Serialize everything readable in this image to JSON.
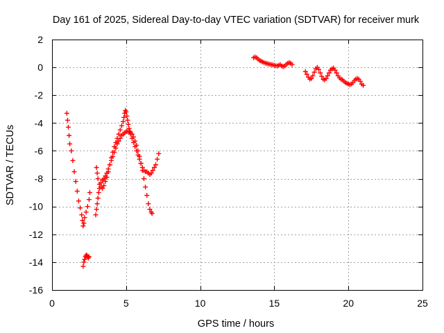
{
  "chart_data": {
    "type": "scatter",
    "title": "Day 161 of 2025, Sidereal Day-to-day VTEC variation (SDTVAR) for receiver murk",
    "xlabel": "GPS time / hours",
    "ylabel": "SDTVAR / TECUs",
    "xlim": [
      0,
      25
    ],
    "ylim": [
      -16,
      2
    ],
    "xticks": [
      0,
      5,
      10,
      15,
      20,
      25
    ],
    "yticks": [
      2,
      0,
      -2,
      -4,
      -6,
      -8,
      -10,
      -12,
      -14,
      -16
    ],
    "grid": true,
    "marker": "+",
    "color": "#ff0000",
    "series": [
      {
        "name": "SDTVAR",
        "segments": [
          [
            [
              1.0,
              -3.3
            ],
            [
              1.05,
              -3.8
            ],
            [
              1.1,
              -4.3
            ],
            [
              1.15,
              -4.9
            ],
            [
              1.2,
              -5.5
            ],
            [
              1.3,
              -6.0
            ],
            [
              1.4,
              -6.7
            ],
            [
              1.5,
              -7.5
            ],
            [
              1.6,
              -8.2
            ],
            [
              1.7,
              -8.9
            ],
            [
              1.8,
              -9.6
            ],
            [
              1.9,
              -10.1
            ],
            [
              2.0,
              -10.6
            ],
            [
              2.05,
              -11.0
            ],
            [
              2.1,
              -11.4
            ],
            [
              2.15,
              -11.2
            ],
            [
              2.2,
              -10.8
            ],
            [
              2.3,
              -10.4
            ],
            [
              2.4,
              -10.0
            ],
            [
              2.5,
              -9.5
            ],
            [
              2.55,
              -9.0
            ]
          ],
          [
            [
              2.1,
              -14.3
            ],
            [
              2.15,
              -14.0
            ],
            [
              2.2,
              -13.8
            ],
            [
              2.25,
              -13.6
            ],
            [
              2.3,
              -13.5
            ],
            [
              2.35,
              -13.5
            ],
            [
              2.4,
              -13.6
            ],
            [
              2.45,
              -13.7
            ],
            [
              2.5,
              -13.6
            ]
          ],
          [
            [
              2.95,
              -10.6
            ],
            [
              3.0,
              -10.2
            ],
            [
              3.05,
              -9.8
            ],
            [
              3.1,
              -9.4
            ],
            [
              3.15,
              -9.0
            ],
            [
              3.2,
              -8.7
            ],
            [
              3.3,
              -8.3
            ],
            [
              3.4,
              -8.1
            ],
            [
              3.5,
              -8.0
            ],
            [
              3.6,
              -7.8
            ],
            [
              3.7,
              -7.6
            ],
            [
              3.8,
              -7.3
            ],
            [
              3.9,
              -7.0
            ],
            [
              4.0,
              -6.7
            ],
            [
              4.1,
              -6.4
            ],
            [
              4.2,
              -6.1
            ],
            [
              4.3,
              -5.8
            ],
            [
              4.4,
              -5.5
            ],
            [
              4.5,
              -5.3
            ],
            [
              4.6,
              -5.1
            ],
            [
              4.7,
              -4.9
            ],
            [
              4.8,
              -4.8
            ],
            [
              4.9,
              -4.7
            ],
            [
              5.0,
              -4.6
            ],
            [
              5.1,
              -4.6
            ],
            [
              5.2,
              -4.6
            ],
            [
              5.3,
              -4.7
            ],
            [
              5.4,
              -4.8
            ],
            [
              5.5,
              -5.0
            ],
            [
              5.6,
              -5.3
            ],
            [
              5.7,
              -5.6
            ],
            [
              5.8,
              -6.0
            ],
            [
              5.9,
              -6.4
            ],
            [
              6.0,
              -6.9
            ],
            [
              6.1,
              -7.4
            ],
            [
              6.2,
              -8.0
            ],
            [
              6.3,
              -8.6
            ],
            [
              6.4,
              -9.2
            ],
            [
              6.5,
              -9.8
            ],
            [
              6.6,
              -10.2
            ],
            [
              6.7,
              -10.4
            ],
            [
              6.75,
              -10.5
            ]
          ],
          [
            [
              3.0,
              -7.2
            ],
            [
              3.05,
              -7.6
            ],
            [
              3.1,
              -8.0
            ],
            [
              3.2,
              -8.4
            ],
            [
              3.3,
              -8.6
            ],
            [
              3.4,
              -8.7
            ],
            [
              3.5,
              -8.5
            ],
            [
              3.6,
              -8.2
            ],
            [
              3.7,
              -7.9
            ],
            [
              3.8,
              -7.5
            ],
            [
              3.9,
              -7.0
            ],
            [
              4.0,
              -6.5
            ],
            [
              4.1,
              -6.1
            ],
            [
              4.2,
              -5.7
            ],
            [
              4.3,
              -5.4
            ],
            [
              4.4,
              -5.1
            ],
            [
              4.5,
              -4.8
            ],
            [
              4.6,
              -4.5
            ],
            [
              4.7,
              -4.2
            ],
            [
              4.8,
              -3.9
            ],
            [
              4.85,
              -3.6
            ],
            [
              4.9,
              -3.3
            ],
            [
              4.95,
              -3.1
            ],
            [
              5.0,
              -3.2
            ],
            [
              5.05,
              -3.5
            ],
            [
              5.1,
              -3.8
            ],
            [
              5.15,
              -4.1
            ],
            [
              5.2,
              -4.4
            ],
            [
              5.25,
              -4.6
            ],
            [
              5.3,
              -4.8
            ],
            [
              5.4,
              -5.1
            ],
            [
              5.5,
              -5.4
            ],
            [
              5.6,
              -5.7
            ],
            [
              5.7,
              -6.0
            ],
            [
              5.8,
              -6.3
            ],
            [
              5.9,
              -6.6
            ],
            [
              6.0,
              -6.9
            ],
            [
              6.1,
              -7.2
            ],
            [
              6.2,
              -7.4
            ],
            [
              6.3,
              -7.5
            ],
            [
              6.4,
              -7.5
            ],
            [
              6.5,
              -7.6
            ],
            [
              6.6,
              -7.7
            ],
            [
              6.7,
              -7.6
            ],
            [
              6.8,
              -7.4
            ],
            [
              6.9,
              -7.2
            ],
            [
              7.0,
              -7.0
            ],
            [
              7.1,
              -6.6
            ],
            [
              7.2,
              -6.2
            ]
          ],
          [
            [
              13.6,
              0.7
            ],
            [
              13.7,
              0.75
            ],
            [
              13.8,
              0.7
            ],
            [
              13.9,
              0.6
            ],
            [
              14.0,
              0.5
            ],
            [
              14.1,
              0.45
            ],
            [
              14.2,
              0.4
            ],
            [
              14.3,
              0.35
            ],
            [
              14.4,
              0.3
            ],
            [
              14.5,
              0.28
            ],
            [
              14.6,
              0.25
            ],
            [
              14.7,
              0.22
            ],
            [
              14.8,
              0.2
            ],
            [
              14.9,
              0.18
            ],
            [
              15.0,
              0.15
            ],
            [
              15.1,
              0.12
            ],
            [
              15.2,
              0.1
            ],
            [
              15.3,
              0.15
            ],
            [
              15.4,
              0.2
            ],
            [
              15.5,
              0.1
            ],
            [
              15.6,
              0.05
            ],
            [
              15.7,
              0.1
            ],
            [
              15.8,
              0.2
            ],
            [
              15.9,
              0.3
            ],
            [
              16.0,
              0.35
            ],
            [
              16.1,
              0.3
            ],
            [
              16.2,
              0.2
            ]
          ],
          [
            [
              17.1,
              -0.3
            ],
            [
              17.2,
              -0.5
            ],
            [
              17.3,
              -0.7
            ],
            [
              17.4,
              -0.85
            ],
            [
              17.5,
              -0.8
            ],
            [
              17.6,
              -0.6
            ],
            [
              17.7,
              -0.35
            ],
            [
              17.8,
              -0.1
            ],
            [
              17.9,
              0.0
            ],
            [
              18.0,
              -0.15
            ],
            [
              18.1,
              -0.4
            ],
            [
              18.2,
              -0.65
            ],
            [
              18.3,
              -0.85
            ],
            [
              18.4,
              -0.9
            ],
            [
              18.5,
              -0.8
            ],
            [
              18.6,
              -0.6
            ],
            [
              18.7,
              -0.4
            ],
            [
              18.8,
              -0.2
            ],
            [
              18.9,
              -0.1
            ],
            [
              19.0,
              -0.05
            ],
            [
              19.1,
              -0.2
            ],
            [
              19.2,
              -0.4
            ],
            [
              19.3,
              -0.6
            ],
            [
              19.4,
              -0.75
            ],
            [
              19.5,
              -0.85
            ],
            [
              19.6,
              -0.9
            ],
            [
              19.7,
              -1.0
            ],
            [
              19.8,
              -1.1
            ],
            [
              19.9,
              -1.15
            ],
            [
              20.0,
              -1.2
            ],
            [
              20.1,
              -1.25
            ],
            [
              20.2,
              -1.2
            ],
            [
              20.3,
              -1.1
            ],
            [
              20.4,
              -0.95
            ],
            [
              20.5,
              -0.85
            ],
            [
              20.6,
              -0.8
            ],
            [
              20.7,
              -0.85
            ],
            [
              20.8,
              -1.0
            ],
            [
              20.9,
              -1.2
            ],
            [
              21.0,
              -1.3
            ]
          ]
        ]
      }
    ]
  }
}
